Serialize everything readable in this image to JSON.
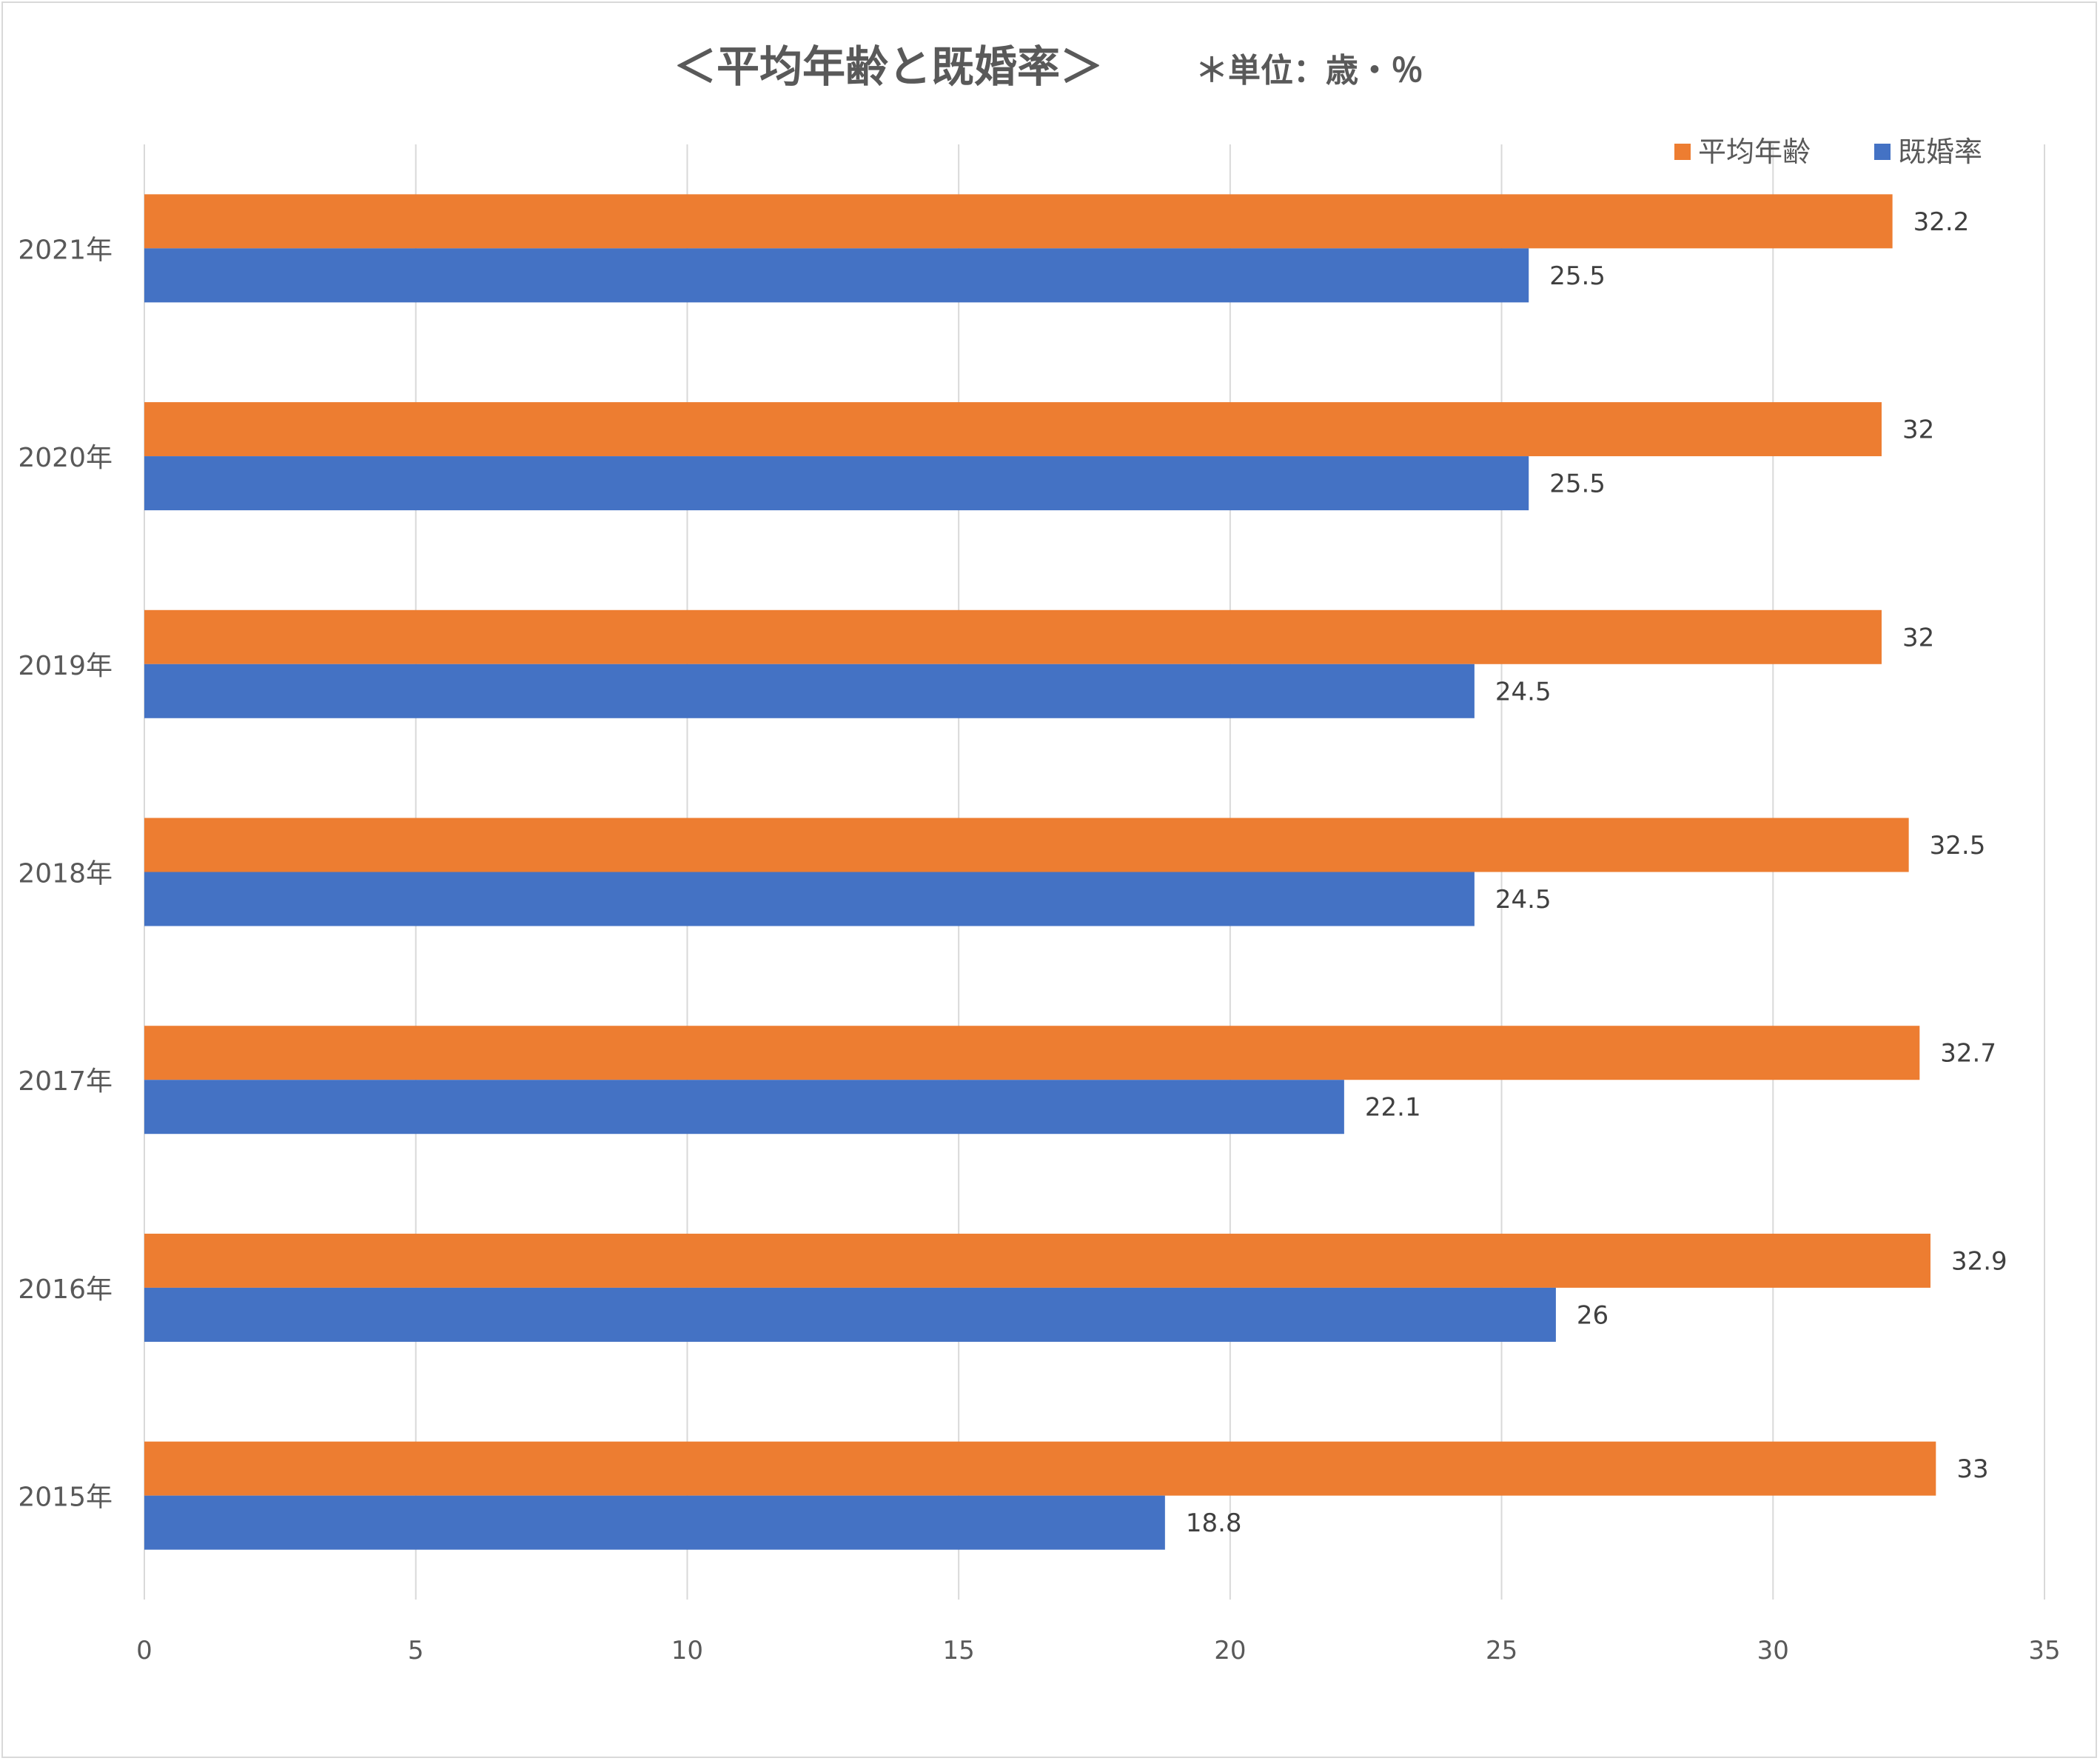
{
  "chart_data": {
    "type": "bar",
    "orientation": "horizontal",
    "title": "＜平均年齢と既婚率＞",
    "subtitle": "＊単位：歳・％",
    "categories": [
      "2021年",
      "2020年",
      "2019年",
      "2018年",
      "2017年",
      "2016年",
      "2015年"
    ],
    "series": [
      {
        "name": "平均年齢",
        "color": "#ED7D31",
        "values": [
          32.2,
          32,
          32,
          32.5,
          32.7,
          32.9,
          33
        ]
      },
      {
        "name": "既婚率",
        "color": "#4472C4",
        "values": [
          25.5,
          25.5,
          24.5,
          24.5,
          22.1,
          26,
          18.8
        ]
      }
    ],
    "xlim": [
      0,
      35
    ],
    "xticks": [
      0,
      5,
      10,
      15,
      20,
      25,
      30,
      35
    ],
    "grid": true,
    "legend_position": "top-right"
  }
}
